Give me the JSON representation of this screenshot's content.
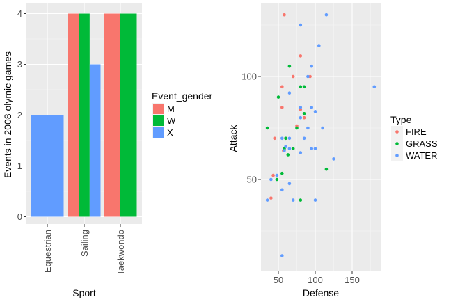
{
  "chart_data": [
    {
      "type": "bar",
      "position": "dodge",
      "categories": [
        "Equestrian",
        "Sailing",
        "Taekwondo"
      ],
      "xlabel": "Sport",
      "ylabel": "Events in 2008 olymic games",
      "ylim": [
        0,
        4
      ],
      "yticks": [
        "0",
        "1",
        "2",
        "3",
        "4"
      ],
      "grid": true,
      "legend": {
        "title": "Event_gender",
        "placement": "right",
        "entries": [
          {
            "label": "M",
            "color": "#F8766D"
          },
          {
            "label": "W",
            "color": "#00BA38"
          },
          {
            "label": "X",
            "color": "#619CFF"
          }
        ]
      },
      "series": [
        {
          "name": "M",
          "color": "#F8766D",
          "values": [
            null,
            4,
            4
          ]
        },
        {
          "name": "W",
          "color": "#00BA38",
          "values": [
            null,
            4,
            4
          ]
        },
        {
          "name": "X",
          "color": "#619CFF",
          "values": [
            2,
            3,
            null
          ]
        }
      ]
    },
    {
      "type": "scatter",
      "xlabel": "Defense",
      "ylabel": "Attack",
      "xlim": [
        32,
        183
      ],
      "ylim": [
        7,
        135
      ],
      "xticks": [
        "50",
        "100",
        "150"
      ],
      "yticks": [
        "50",
        "100"
      ],
      "grid": true,
      "legend": {
        "title": "Type",
        "placement": "right",
        "entries": [
          {
            "label": "FIRE",
            "color": "#F8766D"
          },
          {
            "label": "GRASS",
            "color": "#00BA38"
          },
          {
            "label": "WATER",
            "color": "#619CFF"
          }
        ]
      },
      "series": [
        {
          "name": "FIRE",
          "color": "#F8766D",
          "points": [
            [
              58,
              130
            ],
            [
              80,
              110
            ],
            [
              93,
              100
            ],
            [
              70,
              100
            ],
            [
              55,
              95
            ],
            [
              55,
              85
            ],
            [
              80,
              84
            ],
            [
              85,
              80
            ],
            [
              75,
              76
            ],
            [
              45,
              70
            ],
            [
              60,
              70
            ],
            [
              57,
              64
            ],
            [
              43,
              52
            ],
            [
              40,
              41
            ]
          ]
        },
        {
          "name": "GRASS",
          "color": "#00BA38",
          "points": [
            [
              65,
              105
            ],
            [
              80,
              95
            ],
            [
              85,
              95
            ],
            [
              50,
              90
            ],
            [
              85,
              82
            ],
            [
              35,
              75
            ],
            [
              75,
              75
            ],
            [
              60,
              70
            ],
            [
              58,
              65
            ],
            [
              70,
              65
            ],
            [
              63,
              62
            ],
            [
              55,
              53
            ],
            [
              48,
              50
            ],
            [
              115,
              55
            ],
            [
              80,
              40
            ]
          ]
        },
        {
          "name": "WATER",
          "color": "#619CFF",
          "points": [
            [
              115,
              130
            ],
            [
              80,
              125
            ],
            [
              105,
              115
            ],
            [
              95,
              105
            ],
            [
              90,
              100
            ],
            [
              180,
              95
            ],
            [
              80,
              85
            ],
            [
              95,
              85
            ],
            [
              65,
              92
            ],
            [
              100,
              83
            ],
            [
              80,
              80
            ],
            [
              90,
              75
            ],
            [
              110,
              75
            ],
            [
              85,
              70
            ],
            [
              65,
              70
            ],
            [
              55,
              70
            ],
            [
              60,
              66
            ],
            [
              58,
              64
            ],
            [
              65,
              65
            ],
            [
              95,
              65
            ],
            [
              100,
              65
            ],
            [
              80,
              63
            ],
            [
              125,
              60
            ],
            [
              48,
              52
            ],
            [
              40,
              50
            ],
            [
              55,
              45
            ],
            [
              65,
              48
            ],
            [
              70,
              40
            ],
            [
              100,
              40
            ],
            [
              35,
              40
            ],
            [
              55,
              13
            ]
          ]
        }
      ]
    }
  ]
}
